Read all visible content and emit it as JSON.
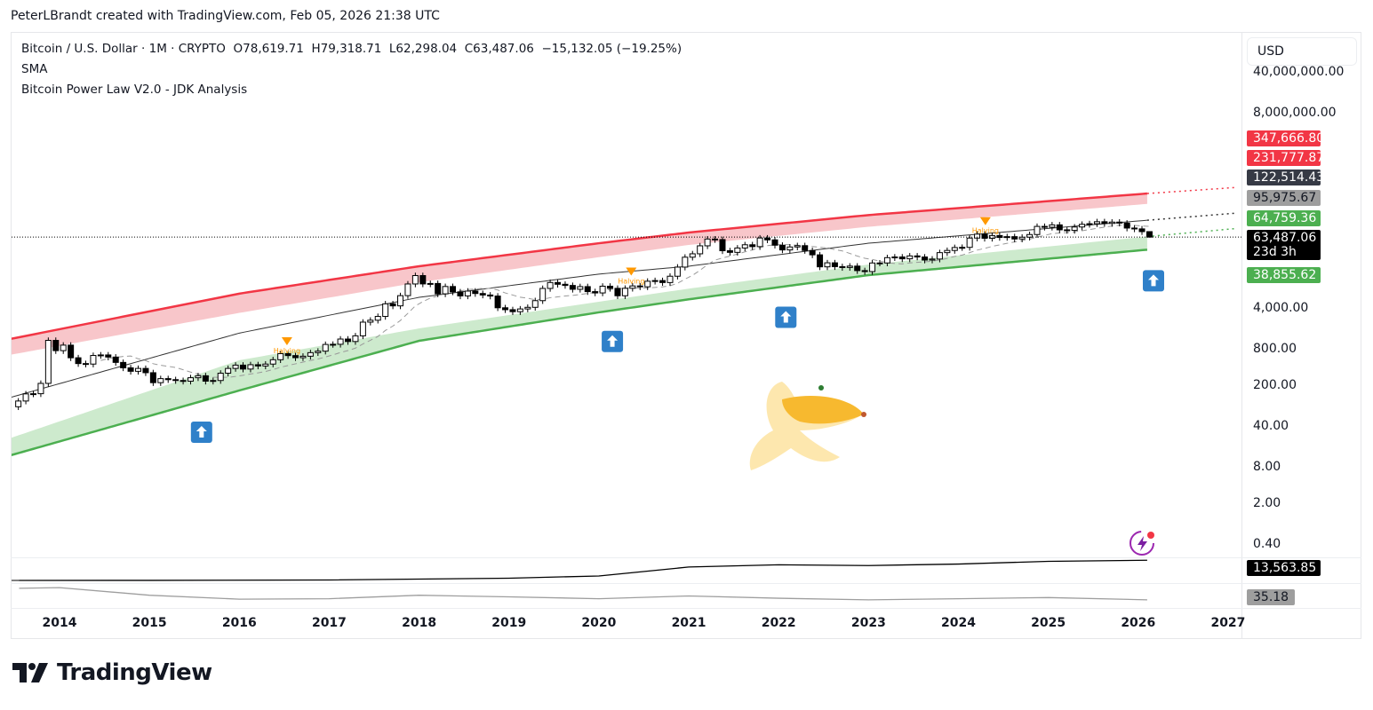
{
  "credit": "PeterLBrandt created with TradingView.com, Feb 05, 2026 21:38 UTC",
  "legend": {
    "symbol": "Bitcoin / U.S. Dollar · 1M · CRYPTO",
    "open": "O78,619.71",
    "high": "H79,318.71",
    "low": "L62,298.04",
    "close": "C63,487.06",
    "change": "−15,132.05 (−19.25%)",
    "indicator1": "SMA",
    "indicator2": "Bitcoin Power Law V2.0 - JDK Analysis"
  },
  "currency_button": "USD",
  "logo_text": "TradingView",
  "colors": {
    "red_band": "#f23645",
    "green_band": "#4caf50",
    "signal": "#2f80c9",
    "halving": "#ff9800",
    "up_body": "#ffffff",
    "down_body": "#000000"
  },
  "chart_data": {
    "type": "candlestick",
    "scale": "log",
    "interval": "1M",
    "x_tick_labels": [
      "2014",
      "2015",
      "2016",
      "2017",
      "2018",
      "2019",
      "2020",
      "2021",
      "2022",
      "2023",
      "2024",
      "2025",
      "2026",
      "2027"
    ],
    "y_tick_labels": [
      {
        "value": 40000000,
        "label": "40,000,000.00"
      },
      {
        "value": 8000000,
        "label": "8,000,000.00"
      },
      {
        "value": 4000,
        "label": "4,000.00"
      },
      {
        "value": 800,
        "label": "800.00"
      },
      {
        "value": 200,
        "label": "200.00"
      },
      {
        "value": 40,
        "label": "40.00"
      },
      {
        "value": 8,
        "label": "8.00"
      },
      {
        "value": 2,
        "label": "2.00"
      },
      {
        "value": 0.4,
        "label": "0.40"
      }
    ],
    "candles_start": "2013-07",
    "monthly_closes": [
      106,
      140,
      141,
      211,
      1130,
      757,
      938,
      573,
      457,
      448,
      627,
      640,
      589,
      478,
      387,
      338,
      378,
      320,
      217,
      254,
      244,
      236,
      230,
      263,
      284,
      230,
      236,
      314,
      378,
      430,
      369,
      437,
      416,
      448,
      531,
      673,
      624,
      575,
      609,
      700,
      742,
      964,
      970,
      1190,
      1080,
      1348,
      2300,
      2480,
      2875,
      4700,
      4340,
      6470,
      10200,
      14150,
      10220,
      10400,
      6940,
      9240,
      7500,
      6400,
      7730,
      7030,
      6630,
      6370,
      4030,
      3740,
      3460,
      3850,
      4100,
      5320,
      8570,
      10800,
      10080,
      9630,
      8290,
      9200,
      7570,
      7190,
      9350,
      8600,
      6440,
      8620,
      9450,
      9140,
      11350,
      11650,
      10780,
      13800,
      19700,
      28990,
      33100,
      45200,
      58900,
      57700,
      37300,
      35000,
      41500,
      47100,
      43800,
      61300,
      57000,
      46300,
      38500,
      43200,
      45500,
      37700,
      31800,
      19900,
      23300,
      20050,
      19430,
      20500,
      17170,
      16540,
      23140,
      23150,
      28480,
      29250,
      27220,
      30480,
      29230,
      25940,
      26970,
      34650,
      37720,
      42270,
      42580,
      61130,
      71290,
      60640,
      67500,
      62680,
      64620,
      58970,
      63300,
      70200,
      96400,
      93400,
      102400,
      84350,
      82550,
      94200,
      104600,
      107100,
      115700,
      108200,
      114050,
      109600,
      90400,
      87500,
      78619.71
    ],
    "last_candle": {
      "open": 78619.71,
      "high": 79318.71,
      "low": 62298.04,
      "close": 63487.06
    },
    "sma_period": 12,
    "power_law": {
      "years": [
        2013.55,
        2016,
        2018,
        2020,
        2021,
        2023,
        2026.1
      ],
      "red_upper": [
        1277,
        7000,
        20370,
        50000,
        75900,
        150000,
        347666.8
      ],
      "red_lower": [
        684,
        3300,
        10900,
        29000,
        46800,
        95000,
        231777.87
      ],
      "trend": [
        134,
        1500,
        6050,
        15000,
        20400,
        50000,
        122514.43
      ],
      "green_upper": [
        28,
        520,
        1800,
        5100,
        8500,
        21800,
        64759.36
      ],
      "green_lower": [
        14,
        160,
        1110,
        3370,
        5600,
        14400,
        38855.62
      ]
    },
    "halvings": [
      {
        "date": 2016.53,
        "label": "Halving"
      },
      {
        "date": 2020.36,
        "label": "Halving"
      },
      {
        "date": 2024.3,
        "label": "Halving"
      }
    ],
    "buy_signals": [
      2015.58,
      2020.15,
      2022.08,
      2026.17
    ],
    "price_labels": [
      {
        "text": "347,666.80",
        "color": "#f23645"
      },
      {
        "text": "231,777.87",
        "color": "#f23645"
      },
      {
        "text": "122,514.43",
        "color": "#363a45"
      },
      {
        "text": "95,975.67",
        "color": "#9e9e9e",
        "dark": true
      },
      {
        "text": "64,759.36",
        "color": "#4caf50"
      },
      {
        "text": "63,487.06",
        "color": "#000000",
        "sub": "23d 3h"
      },
      {
        "text": "38,855.62",
        "color": "#4caf50"
      }
    ],
    "pane1": {
      "last_label": "13,563.85",
      "years": [
        2013.55,
        2015,
        2017,
        2019,
        2020,
        2021,
        2022,
        2023,
        2024,
        2025,
        2026.1
      ],
      "values": [
        0,
        50,
        300,
        1500,
        3000,
        9000,
        10500,
        10000,
        11000,
        12800,
        13563.85
      ]
    },
    "pane2": {
      "last_label": "35.18",
      "years": [
        2013.55,
        2014,
        2015,
        2016,
        2017,
        2018,
        2019,
        2020,
        2021,
        2022,
        2023,
        2024,
        2025,
        2026.1
      ],
      "values": [
        85,
        88,
        55,
        38,
        40,
        55,
        48,
        40,
        52,
        42,
        35,
        40,
        45,
        35.18
      ]
    }
  }
}
